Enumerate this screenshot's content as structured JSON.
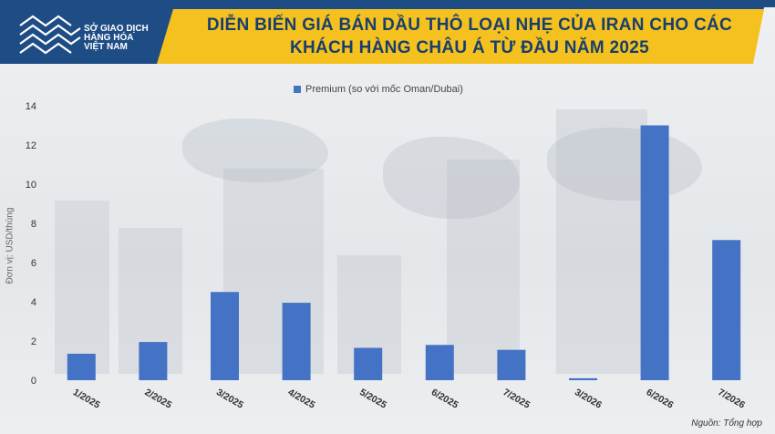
{
  "title_lines": [
    "DIỄN BIẾN GIÁ BÁN DẦU THÔ LOẠI NHẸ CỦA IRAN CHO CÁC",
    "KHÁCH HÀNG CHÂU Á TỪ ĐẦU NĂM 2025"
  ],
  "logo": {
    "line1": "SỞ GIAO DỊCH",
    "line2": "HÀNG HÓA",
    "line3": "VIỆT NAM",
    "icon": "mxv-chevron-logo"
  },
  "source": "Nguồn: Tổng hợp",
  "colors": {
    "bar": "#4472c4",
    "banner": "#f5c11e",
    "banner_dark": "#1e4d85",
    "title": "#173f6e"
  },
  "chart_data": {
    "type": "bar",
    "categories": [
      "1/2025",
      "2/2025",
      "3/2025",
      "4/2025",
      "5/2025",
      "6/2025",
      "7/2025",
      "3/2026",
      "6/2026",
      "7/2026"
    ],
    "series": [
      {
        "name": "Premium (so với mốc Oman/Dubai)",
        "values": [
          1.35,
          1.95,
          4.5,
          3.95,
          1.65,
          1.8,
          1.55,
          0.1,
          13.0,
          7.15
        ]
      }
    ],
    "ylabel": "Đơn vị: USD/thùng",
    "ylim": [
      0,
      14
    ],
    "yticks": [
      0,
      2,
      4,
      6,
      8,
      10,
      12,
      14
    ],
    "grid": false,
    "legend": "top-center"
  }
}
